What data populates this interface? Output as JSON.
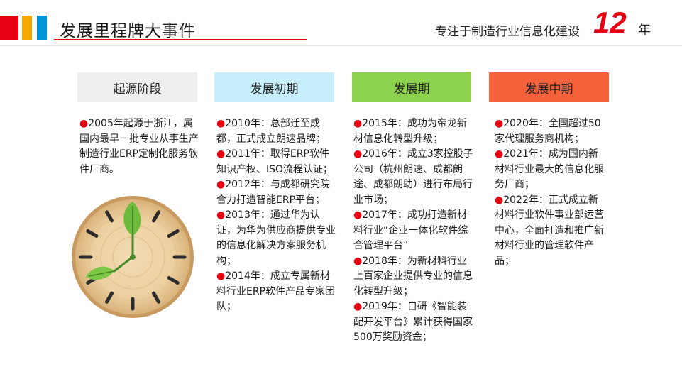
{
  "header": {
    "title": "发展里程牌大事件",
    "slogan": "专注于制造行业信息化建设",
    "years": "12",
    "year_unit": "年"
  },
  "colors": {
    "brand_red": "#e60012",
    "accent_yellow": "#f5a800",
    "accent_blue": "#0094d8",
    "stage1_bg": "#efefef",
    "stage2_bg": "#c6eefb",
    "stage3_bg": "#8dd24f",
    "stage4_bg": "#f5613a"
  },
  "bullet": "●",
  "stages": [
    {
      "label": "起源阶段",
      "items": [
        "2005年起源于浙江，属国内最早一批专业从事生产制造行业ERP定制化服务软件厂商。"
      ]
    },
    {
      "label": "发展初期",
      "items": [
        "2010年：总部迁至成都，正式成立朗速品牌；",
        "2011年：取得ERP软件知识产权、ISO流程认证；",
        "2012年：与成都研究院合力打造智能ERP平台；",
        "2013年：通过华为认证，为华为供应商提供专业的信息化解决方案服务机构；",
        "2014年：成立专属新材料行业ERP软件产品专家团队；"
      ]
    },
    {
      "label": "发展期",
      "items": [
        "2015年：成功为帝龙新材信息化转型升级；",
        "2016年：成立3家控股子公司（杭州朗速、成都朗途、成都朗助）进行布局行业市场；",
        "2017年：成功打造新材料行业“企业一体化软件综合管理平台”",
        "2018年：为新材料行业上百家企业提供专业的信息化转型升级；",
        "2019年：自研《智能装配开发平台》累计获得国家500万奖励资金；"
      ]
    },
    {
      "label": "发展中期",
      "items": [
        "2020年：全国超过50家代理服务商机构；",
        "2021年：成为国内新材料行业最大的信息化服务厂商；",
        "2022年：正式成立新材料行业软件事业部运营中心，全面打造和推广新材料行业的管理软件产品；"
      ]
    }
  ],
  "decoration": {
    "clock": "wooden-clock-with-leaves-icon"
  }
}
